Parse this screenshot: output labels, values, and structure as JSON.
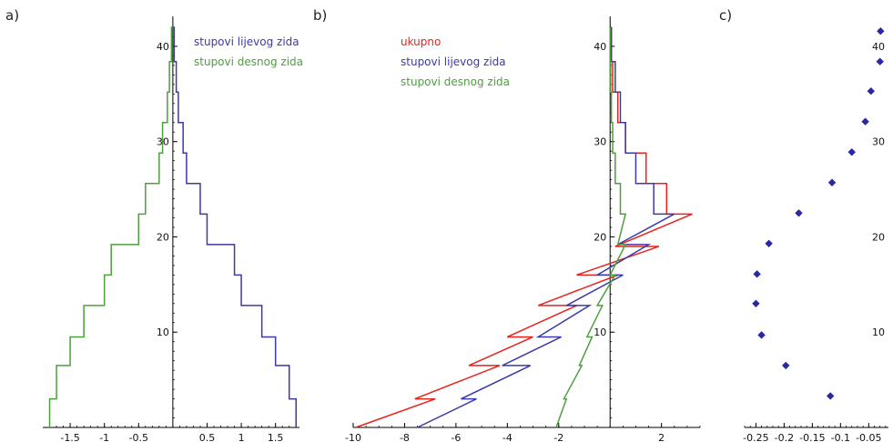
{
  "chart_data": [
    {
      "panel_label": "a)",
      "type": "line",
      "xlim": [
        -1.9,
        1.85
      ],
      "ylim": [
        0,
        42
      ],
      "x_ticks": [
        -1.5,
        -1,
        -0.5,
        0.5,
        1,
        1.5
      ],
      "x_tick_labels": [
        "-1.5",
        "-1",
        "-0.5",
        "0.5",
        "1",
        "1.5"
      ],
      "y_ticks": [
        10,
        20,
        30,
        40
      ],
      "y_tick_labels": [
        "10",
        "20",
        "30",
        "40"
      ],
      "legend": "top-right",
      "series": [
        {
          "name": "stupovi lijevog zida",
          "color": "#3a3aa8",
          "step": true,
          "steps": [
            [
              1.8,
              0,
              3
            ],
            [
              1.7,
              3,
              6.5
            ],
            [
              1.5,
              6.5,
              9.5
            ],
            [
              1.3,
              9.5,
              12.8
            ],
            [
              1.0,
              12.8,
              16
            ],
            [
              0.9,
              16,
              19.2
            ],
            [
              0.5,
              19.2,
              22.4
            ],
            [
              0.4,
              22.4,
              25.6
            ],
            [
              0.2,
              25.6,
              28.8
            ],
            [
              0.15,
              28.8,
              32
            ],
            [
              0.08,
              32,
              35.2
            ],
            [
              0.05,
              35.2,
              38.4
            ],
            [
              0.02,
              38.4,
              42
            ]
          ]
        },
        {
          "name": "stupovi desnog zida",
          "color": "#4ca03c",
          "step": true,
          "steps": [
            [
              -1.8,
              0,
              3
            ],
            [
              -1.7,
              3,
              6.5
            ],
            [
              -1.5,
              6.5,
              9.5
            ],
            [
              -1.3,
              9.5,
              12.8
            ],
            [
              -1.0,
              12.8,
              16
            ],
            [
              -0.9,
              16,
              19.2
            ],
            [
              -0.5,
              19.2,
              22.4
            ],
            [
              -0.4,
              22.4,
              25.6
            ],
            [
              -0.2,
              25.6,
              28.8
            ],
            [
              -0.15,
              28.8,
              32
            ],
            [
              -0.08,
              32,
              35.2
            ],
            [
              -0.05,
              35.2,
              38.4
            ],
            [
              -0.02,
              38.4,
              42
            ]
          ]
        }
      ]
    },
    {
      "panel_label": "b)",
      "type": "line",
      "xlim": [
        -10,
        3.5
      ],
      "ylim": [
        0,
        42
      ],
      "x_ticks": [
        -10,
        -8,
        -6,
        -4,
        -2,
        2
      ],
      "x_tick_labels": [
        "-10",
        "-8",
        "-6",
        "-4",
        "-2",
        "2"
      ],
      "y_ticks": [
        10,
        20,
        30,
        40
      ],
      "y_tick_labels": [
        "10",
        "20",
        "30",
        "40"
      ],
      "legend": "top-center",
      "series": [
        {
          "name": "ukupno",
          "color": "#e8221c",
          "points": [
            [
              -9.9,
              0
            ],
            [
              -6.8,
              3
            ],
            [
              -7.6,
              3
            ],
            [
              -4.3,
              6.5
            ],
            [
              -5.5,
              6.5
            ],
            [
              -3.0,
              9.5
            ],
            [
              -4.0,
              9.5
            ],
            [
              -1.3,
              12.8
            ],
            [
              -2.8,
              12.8
            ],
            [
              0.3,
              16
            ],
            [
              -1.3,
              16
            ],
            [
              1.9,
              19
            ],
            [
              0.2,
              19
            ],
            [
              3.2,
              22.4
            ],
            [
              2.2,
              22.4
            ],
            [
              2.2,
              25.6
            ],
            [
              1.4,
              25.6
            ],
            [
              1.4,
              28.8
            ],
            [
              0.6,
              28.8
            ],
            [
              0.6,
              32
            ],
            [
              0.3,
              32
            ],
            [
              0.3,
              35.2
            ],
            [
              0.1,
              35.2
            ],
            [
              0.1,
              38.4
            ],
            [
              0.05,
              38.4
            ],
            [
              0.05,
              42
            ]
          ]
        },
        {
          "name": "stupovi lijevog zida",
          "color": "#3a3aa8",
          "points": [
            [
              -7.5,
              0
            ],
            [
              -5.2,
              3
            ],
            [
              -5.8,
              3
            ],
            [
              -3.1,
              6.5
            ],
            [
              -4.2,
              6.5
            ],
            [
              -1.9,
              9.5
            ],
            [
              -2.8,
              9.5
            ],
            [
              -0.8,
              12.8
            ],
            [
              -1.7,
              12.8
            ],
            [
              0.5,
              16
            ],
            [
              -0.5,
              16
            ],
            [
              1.5,
              19.2
            ],
            [
              0.3,
              19.2
            ],
            [
              2.5,
              22.4
            ],
            [
              1.7,
              22.4
            ],
            [
              1.7,
              25.6
            ],
            [
              1.0,
              25.6
            ],
            [
              1.0,
              28.8
            ],
            [
              0.6,
              28.8
            ],
            [
              0.6,
              32
            ],
            [
              0.4,
              32
            ],
            [
              0.4,
              35.2
            ],
            [
              0.2,
              35.2
            ],
            [
              0.2,
              38.4
            ],
            [
              0.05,
              38.4
            ],
            [
              0.05,
              42
            ]
          ]
        },
        {
          "name": "stupovi desnog zida",
          "color": "#4ca03c",
          "points": [
            [
              -2.1,
              0
            ],
            [
              -1.7,
              3
            ],
            [
              -1.8,
              3
            ],
            [
              -1.1,
              6.5
            ],
            [
              -1.2,
              6.5
            ],
            [
              -0.7,
              9.5
            ],
            [
              -0.9,
              9.5
            ],
            [
              -0.3,
              12.8
            ],
            [
              -0.5,
              12.8
            ],
            [
              0.2,
              16
            ],
            [
              0.0,
              16
            ],
            [
              0.6,
              19.2
            ],
            [
              0.3,
              19.2
            ],
            [
              0.6,
              22.4
            ],
            [
              0.4,
              22.4
            ],
            [
              0.4,
              25.6
            ],
            [
              0.2,
              25.6
            ],
            [
              0.2,
              28.8
            ],
            [
              0.1,
              28.8
            ],
            [
              0.1,
              32
            ],
            [
              0.05,
              32
            ],
            [
              0.05,
              35.2
            ],
            [
              0.02,
              35.2
            ],
            [
              0.02,
              38.4
            ],
            [
              0.0,
              38.4
            ],
            [
              0.0,
              42
            ]
          ]
        }
      ]
    },
    {
      "panel_label": "c)",
      "type": "scatter",
      "xlim": [
        -0.27,
        -0.015
      ],
      "ylim": [
        0,
        42
      ],
      "x_ticks": [
        -0.25,
        -0.2,
        -0.15,
        -0.1,
        -0.05
      ],
      "x_tick_labels": [
        "-0.25",
        "-0.2",
        "-0.15",
        "-0.1",
        "-0.05"
      ],
      "y_ticks": [
        10,
        20,
        30,
        40
      ],
      "y_tick_labels": [
        "10",
        "20",
        "30",
        "40"
      ],
      "series": [
        {
          "color": "#2828a0",
          "marker": "diamond",
          "points": [
            [
              -0.118,
              3.3
            ],
            [
              -0.197,
              6.5
            ],
            [
              -0.24,
              9.7
            ],
            [
              -0.25,
              13
            ],
            [
              -0.248,
              16.1
            ],
            [
              -0.227,
              19.3
            ],
            [
              -0.174,
              22.5
            ],
            [
              -0.115,
              25.7
            ],
            [
              -0.08,
              28.9
            ],
            [
              -0.056,
              32.1
            ],
            [
              -0.046,
              35.3
            ],
            [
              -0.03,
              38.4
            ],
            [
              -0.029,
              41.6
            ]
          ]
        }
      ]
    }
  ]
}
